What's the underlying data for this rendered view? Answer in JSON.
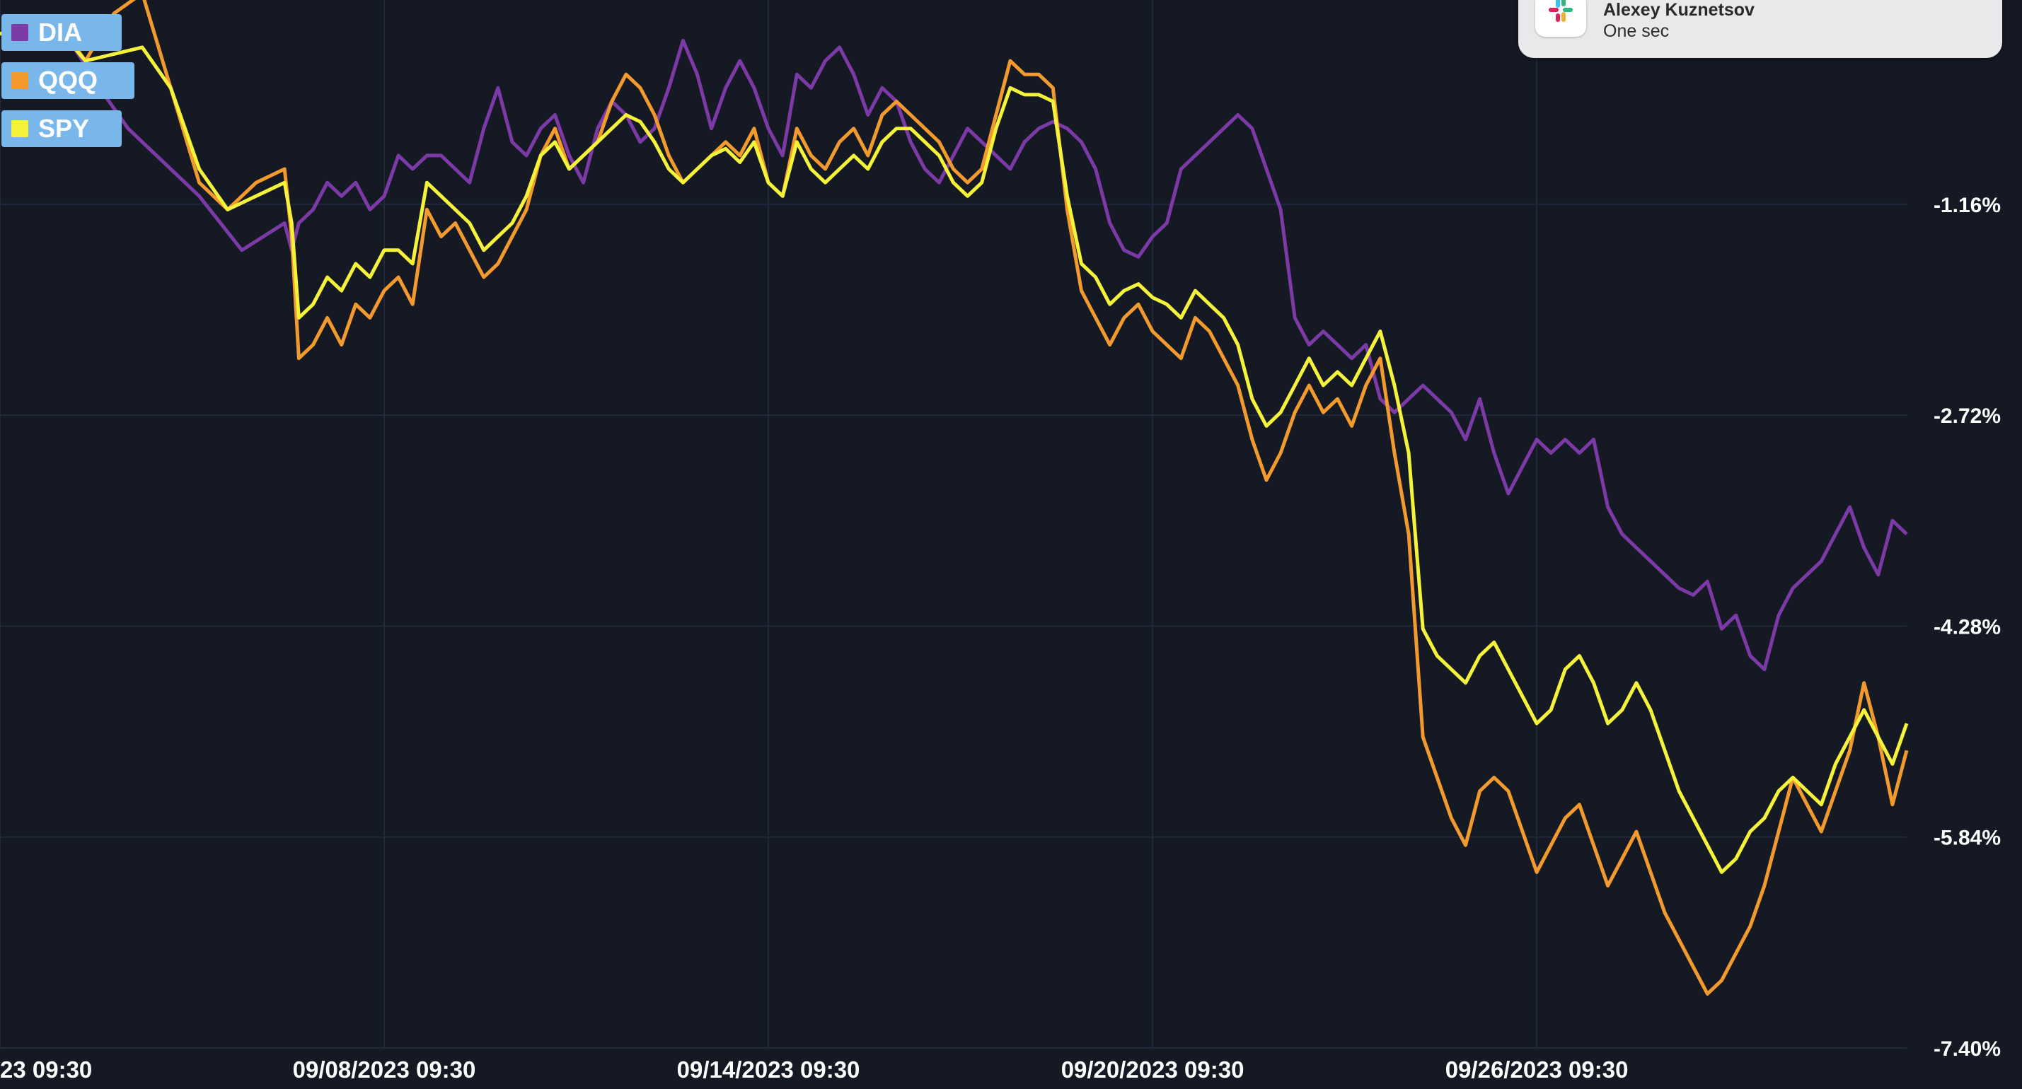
{
  "chart_data": {
    "type": "line",
    "y_axis": {
      "position": "right",
      "unit": "%",
      "ticks": [
        "-1.16%",
        "-2.72%",
        "-4.28%",
        "-5.84%",
        "-7.40%"
      ],
      "tick_values": [
        -1.16,
        -2.72,
        -4.28,
        -5.84,
        -7.4
      ],
      "range": [
        -7.4,
        0.35
      ]
    },
    "x_axis": {
      "ticks": [
        "23 09:30",
        "09/08/2023 09:30",
        "09/14/2023 09:30",
        "09/20/2023 09:30",
        "09/26/2023 09:30"
      ],
      "tick_index": [
        0,
        54,
        108,
        162,
        216
      ],
      "range_index": [
        0,
        268
      ]
    },
    "grid": true,
    "legend": "top-left",
    "series": [
      {
        "name": "DIA",
        "color": "#7c3aa6",
        "x": [
          0,
          8,
          14,
          18,
          22,
          28,
          34,
          40,
          41,
          42,
          44,
          46,
          48,
          50,
          52,
          54,
          56,
          58,
          60,
          62,
          64,
          66,
          68,
          70,
          72,
          74,
          76,
          78,
          80,
          82,
          84,
          86,
          88,
          90,
          92,
          94,
          96,
          98,
          100,
          102,
          104,
          106,
          108,
          110,
          112,
          114,
          116,
          118,
          120,
          122,
          124,
          126,
          128,
          130,
          132,
          134,
          136,
          138,
          140,
          142,
          144,
          146,
          148,
          150,
          152,
          154,
          156,
          158,
          160,
          162,
          164,
          166,
          168,
          170,
          172,
          174,
          176,
          178,
          180,
          182,
          184,
          186,
          188,
          190,
          192,
          194,
          196,
          198,
          200,
          202,
          204,
          206,
          208,
          210,
          212,
          214,
          216,
          218,
          220,
          222,
          224,
          226,
          228,
          230,
          232,
          234,
          236,
          238,
          240,
          242,
          244,
          246,
          248,
          250,
          252,
          254,
          256,
          258,
          260,
          262,
          264,
          266,
          268
        ],
        "y": [
          0.1,
          0.2,
          -0.3,
          -0.6,
          -0.8,
          -1.1,
          -1.5,
          -1.3,
          -1.5,
          -1.3,
          -1.2,
          -1.0,
          -1.1,
          -1.0,
          -1.2,
          -1.1,
          -0.8,
          -0.9,
          -0.8,
          -0.8,
          -0.9,
          -1.0,
          -0.6,
          -0.3,
          -0.7,
          -0.8,
          -0.6,
          -0.5,
          -0.8,
          -1.0,
          -0.6,
          -0.4,
          -0.5,
          -0.7,
          -0.6,
          -0.3,
          0.05,
          -0.2,
          -0.6,
          -0.3,
          -0.1,
          -0.3,
          -0.6,
          -0.8,
          -0.2,
          -0.3,
          -0.1,
          0.0,
          -0.2,
          -0.5,
          -0.3,
          -0.4,
          -0.7,
          -0.9,
          -1.0,
          -0.8,
          -0.6,
          -0.7,
          -0.8,
          -0.9,
          -0.7,
          -0.6,
          -0.55,
          -0.6,
          -0.7,
          -0.9,
          -1.3,
          -1.5,
          -1.55,
          -1.4,
          -1.3,
          -0.9,
          -0.8,
          -0.7,
          -0.6,
          -0.5,
          -0.6,
          -0.9,
          -1.2,
          -2.0,
          -2.2,
          -2.1,
          -2.2,
          -2.3,
          -2.2,
          -2.6,
          -2.7,
          -2.6,
          -2.5,
          -2.6,
          -2.7,
          -2.9,
          -2.6,
          -3.0,
          -3.3,
          -3.1,
          -2.9,
          -3.0,
          -2.9,
          -3.0,
          -2.9,
          -3.4,
          -3.6,
          -3.7,
          -3.8,
          -3.9,
          -4.0,
          -4.05,
          -3.95,
          -4.3,
          -4.2,
          -4.5,
          -4.6,
          -4.2,
          -4.0,
          -3.9,
          -3.8,
          -3.6,
          -3.4,
          -3.7,
          -3.9,
          -3.5,
          -3.6
        ]
      },
      {
        "name": "QQQ",
        "color": "#f29a2e",
        "x": [
          0,
          8,
          12,
          16,
          20,
          24,
          28,
          32,
          36,
          40,
          41,
          42,
          44,
          46,
          48,
          50,
          52,
          54,
          56,
          58,
          60,
          62,
          64,
          66,
          68,
          70,
          72,
          74,
          76,
          78,
          80,
          82,
          84,
          86,
          88,
          90,
          92,
          94,
          96,
          98,
          100,
          102,
          104,
          106,
          108,
          110,
          112,
          114,
          116,
          118,
          120,
          122,
          124,
          126,
          128,
          130,
          132,
          134,
          136,
          138,
          140,
          142,
          144,
          146,
          148,
          150,
          152,
          154,
          156,
          158,
          160,
          162,
          164,
          166,
          168,
          170,
          172,
          174,
          176,
          178,
          180,
          182,
          184,
          186,
          188,
          190,
          192,
          194,
          196,
          198,
          200,
          202,
          204,
          206,
          208,
          210,
          212,
          214,
          216,
          218,
          220,
          222,
          224,
          226,
          228,
          230,
          232,
          234,
          236,
          238,
          240,
          242,
          244,
          246,
          248,
          250,
          252,
          254,
          256,
          258,
          260,
          262,
          264,
          266,
          268
        ],
        "y": [
          0.1,
          0.2,
          -0.1,
          0.25,
          0.4,
          -0.3,
          -1.0,
          -1.2,
          -1.0,
          -0.9,
          -1.4,
          -2.3,
          -2.2,
          -2.0,
          -2.2,
          -1.9,
          -2.0,
          -1.8,
          -1.7,
          -1.9,
          -1.2,
          -1.4,
          -1.3,
          -1.5,
          -1.7,
          -1.6,
          -1.4,
          -1.2,
          -0.8,
          -0.6,
          -0.9,
          -0.8,
          -0.7,
          -0.4,
          -0.2,
          -0.3,
          -0.5,
          -0.8,
          -1.0,
          -0.9,
          -0.8,
          -0.7,
          -0.8,
          -0.6,
          -1.0,
          -1.1,
          -0.6,
          -0.8,
          -0.9,
          -0.7,
          -0.6,
          -0.8,
          -0.5,
          -0.4,
          -0.5,
          -0.6,
          -0.7,
          -0.9,
          -1.0,
          -0.9,
          -0.5,
          -0.1,
          -0.2,
          -0.2,
          -0.3,
          -1.2,
          -1.8,
          -2.0,
          -2.2,
          -2.0,
          -1.9,
          -2.1,
          -2.2,
          -2.3,
          -2.0,
          -2.1,
          -2.3,
          -2.5,
          -2.9,
          -3.2,
          -3.0,
          -2.7,
          -2.5,
          -2.7,
          -2.6,
          -2.8,
          -2.5,
          -2.3,
          -3.0,
          -3.6,
          -5.1,
          -5.4,
          -5.7,
          -5.9,
          -5.5,
          -5.4,
          -5.5,
          -5.8,
          -6.1,
          -5.9,
          -5.7,
          -5.6,
          -5.9,
          -6.2,
          -6.0,
          -5.8,
          -6.1,
          -6.4,
          -6.6,
          -6.8,
          -7.0,
          -6.9,
          -6.7,
          -6.5,
          -6.2,
          -5.8,
          -5.4,
          -5.6,
          -5.8,
          -5.5,
          -5.2,
          -4.7,
          -5.1,
          -5.6,
          -5.2
        ]
      },
      {
        "name": "SPY",
        "color": "#f5f23a",
        "x": [
          0,
          8,
          12,
          16,
          20,
          24,
          28,
          32,
          36,
          40,
          41,
          42,
          44,
          46,
          48,
          50,
          52,
          54,
          56,
          58,
          60,
          62,
          64,
          66,
          68,
          70,
          72,
          74,
          76,
          78,
          80,
          82,
          84,
          86,
          88,
          90,
          92,
          94,
          96,
          98,
          100,
          102,
          104,
          106,
          108,
          110,
          112,
          114,
          116,
          118,
          120,
          122,
          124,
          126,
          128,
          130,
          132,
          134,
          136,
          138,
          140,
          142,
          144,
          146,
          148,
          150,
          152,
          154,
          156,
          158,
          160,
          162,
          164,
          166,
          168,
          170,
          172,
          174,
          176,
          178,
          180,
          182,
          184,
          186,
          188,
          190,
          192,
          194,
          196,
          198,
          200,
          202,
          204,
          206,
          208,
          210,
          212,
          214,
          216,
          218,
          220,
          222,
          224,
          226,
          228,
          230,
          232,
          234,
          236,
          238,
          240,
          242,
          244,
          246,
          248,
          250,
          252,
          254,
          256,
          258,
          260,
          262,
          264,
          266,
          268
        ],
        "y": [
          0.1,
          0.15,
          -0.1,
          -0.05,
          0.0,
          -0.3,
          -0.9,
          -1.2,
          -1.1,
          -1.0,
          -1.3,
          -2.0,
          -1.9,
          -1.7,
          -1.8,
          -1.6,
          -1.7,
          -1.5,
          -1.5,
          -1.6,
          -1.0,
          -1.1,
          -1.2,
          -1.3,
          -1.5,
          -1.4,
          -1.3,
          -1.1,
          -0.8,
          -0.7,
          -0.9,
          -0.8,
          -0.7,
          -0.6,
          -0.5,
          -0.55,
          -0.7,
          -0.9,
          -1.0,
          -0.9,
          -0.8,
          -0.75,
          -0.85,
          -0.7,
          -1.0,
          -1.1,
          -0.7,
          -0.9,
          -1.0,
          -0.9,
          -0.8,
          -0.9,
          -0.7,
          -0.6,
          -0.6,
          -0.7,
          -0.8,
          -1.0,
          -1.1,
          -1.0,
          -0.6,
          -0.3,
          -0.35,
          -0.35,
          -0.4,
          -1.1,
          -1.6,
          -1.7,
          -1.9,
          -1.8,
          -1.75,
          -1.85,
          -1.9,
          -2.0,
          -1.8,
          -1.9,
          -2.0,
          -2.2,
          -2.6,
          -2.8,
          -2.7,
          -2.5,
          -2.3,
          -2.5,
          -2.4,
          -2.5,
          -2.3,
          -2.1,
          -2.5,
          -3.0,
          -4.3,
          -4.5,
          -4.6,
          -4.7,
          -4.5,
          -4.4,
          -4.6,
          -4.8,
          -5.0,
          -4.9,
          -4.6,
          -4.5,
          -4.7,
          -5.0,
          -4.9,
          -4.7,
          -4.9,
          -5.2,
          -5.5,
          -5.7,
          -5.9,
          -6.1,
          -6.0,
          -5.8,
          -5.7,
          -5.5,
          -5.4,
          -5.5,
          -5.6,
          -5.3,
          -5.1,
          -4.9,
          -5.1,
          -5.3,
          -5.0
        ]
      }
    ]
  },
  "notification": {
    "sender": "Alexey Kuznetsov",
    "message": "One sec",
    "app_icon": "slack-icon"
  },
  "colors": {
    "background": "#141924",
    "grid": "#20283a",
    "legend_bg": "#79b7ea"
  }
}
